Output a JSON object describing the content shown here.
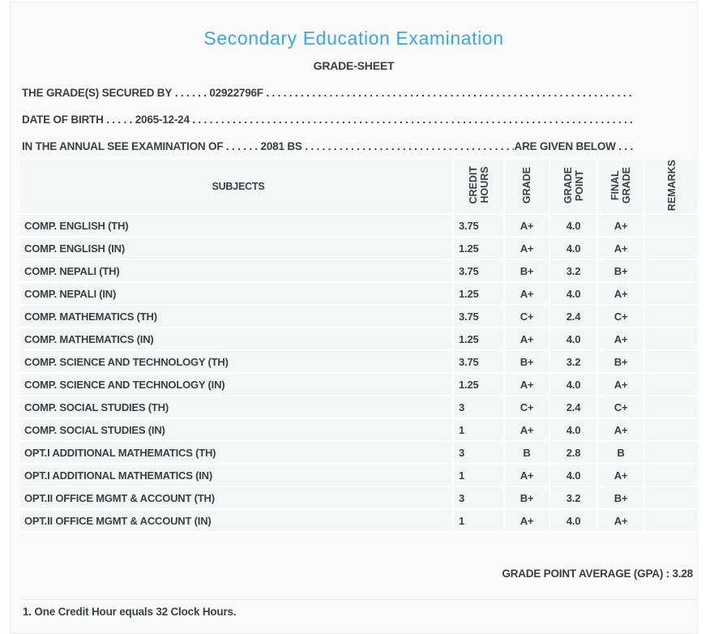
{
  "page": {
    "title": "Secondary Education Examination",
    "subtitle": "GRADE-SHEET",
    "accent_color": "#3aa5ee",
    "panel_background": "#fafafa",
    "row_background": "#f5f6f6"
  },
  "info_lines": [
    {
      "label": "THE GRADE(S) SECURED BY",
      "dots_before": " . . . . . . ",
      "value": "02922796F",
      "dots_after": " . . . . . . . . . . . . . . . . . . . . . . . . . . . . . . . . . . . . . . . . . . . . . . . . . . . . . . . . . . . . . . . . . . . . . . . . . . . . . . . . ",
      "suffix": ""
    },
    {
      "label": "DATE OF BIRTH",
      "dots_before": " . . . . . ",
      "value": "2065-12-24",
      "dots_after": " . . . . . . . . . . . . . . . . . . . . . . . . . . . . . . . . . . . . . . . . . . . . . . . . . . . . . . . . . . . . . . . . . . . . . . . . . . . . . . . . ",
      "suffix": ""
    },
    {
      "label": "IN THE ANNUAL SEE EXAMINATION OF",
      "dots_before": " . . . . . . ",
      "value": "2081 BS",
      "dots_after": " . . . . . . . . . . . . . . . . . . . . . . . . . . . . . . . . . . . . . . . . . . . . . . . . . . . . ",
      "suffix": "ARE GIVEN BELOW . . ."
    }
  ],
  "table": {
    "headers": [
      "SUBJECTS",
      "CREDIT\nHOURS",
      "GRADE",
      "GRADE\nPOINT",
      "FINAL\nGRADE",
      "REMARKS"
    ],
    "rows": [
      {
        "subject": "COMP. ENGLISH (TH)",
        "credit_hours": "3.75",
        "grade": "A+",
        "grade_point": "4.0",
        "final_grade": "A+",
        "remarks": ""
      },
      {
        "subject": "COMP. ENGLISH (IN)",
        "credit_hours": "1.25",
        "grade": "A+",
        "grade_point": "4.0",
        "final_grade": "A+",
        "remarks": ""
      },
      {
        "subject": "COMP. NEPALI (TH)",
        "credit_hours": "3.75",
        "grade": "B+",
        "grade_point": "3.2",
        "final_grade": "B+",
        "remarks": ""
      },
      {
        "subject": "COMP. NEPALI (IN)",
        "credit_hours": "1.25",
        "grade": "A+",
        "grade_point": "4.0",
        "final_grade": "A+",
        "remarks": ""
      },
      {
        "subject": "COMP. MATHEMATICS (TH)",
        "credit_hours": "3.75",
        "grade": "C+",
        "grade_point": "2.4",
        "final_grade": "C+",
        "remarks": ""
      },
      {
        "subject": "COMP. MATHEMATICS (IN)",
        "credit_hours": "1.25",
        "grade": "A+",
        "grade_point": "4.0",
        "final_grade": "A+",
        "remarks": ""
      },
      {
        "subject": "COMP. SCIENCE AND TECHNOLOGY (TH)",
        "credit_hours": "3.75",
        "grade": "B+",
        "grade_point": "3.2",
        "final_grade": "B+",
        "remarks": ""
      },
      {
        "subject": "COMP. SCIENCE AND TECHNOLOGY (IN)",
        "credit_hours": "1.25",
        "grade": "A+",
        "grade_point": "4.0",
        "final_grade": "A+",
        "remarks": ""
      },
      {
        "subject": "COMP. SOCIAL STUDIES (TH)",
        "credit_hours": "3",
        "grade": "C+",
        "grade_point": "2.4",
        "final_grade": "C+",
        "remarks": ""
      },
      {
        "subject": "COMP. SOCIAL STUDIES (IN)",
        "credit_hours": "1",
        "grade": "A+",
        "grade_point": "4.0",
        "final_grade": "A+",
        "remarks": ""
      },
      {
        "subject": "OPT.I ADDITIONAL MATHEMATICS (TH)",
        "credit_hours": "3",
        "grade": "B",
        "grade_point": "2.8",
        "final_grade": "B",
        "remarks": ""
      },
      {
        "subject": "OPT.I ADDITIONAL MATHEMATICS (IN)",
        "credit_hours": "1",
        "grade": "A+",
        "grade_point": "4.0",
        "final_grade": "A+",
        "remarks": ""
      },
      {
        "subject": "OPT.II OFFICE MGMT & ACCOUNT (TH)",
        "credit_hours": "3",
        "grade": "B+",
        "grade_point": "3.2",
        "final_grade": "B+",
        "remarks": ""
      },
      {
        "subject": "OPT.II OFFICE MGMT & ACCOUNT (IN)",
        "credit_hours": "1",
        "grade": "A+",
        "grade_point": "4.0",
        "final_grade": "A+",
        "remarks": ""
      }
    ]
  },
  "summary": {
    "gpa_text": "GRADE POINT AVERAGE (GPA) : 3.28",
    "gpa_value": "3.28"
  },
  "footnote": "1. One Credit Hour equals 32 Clock Hours."
}
